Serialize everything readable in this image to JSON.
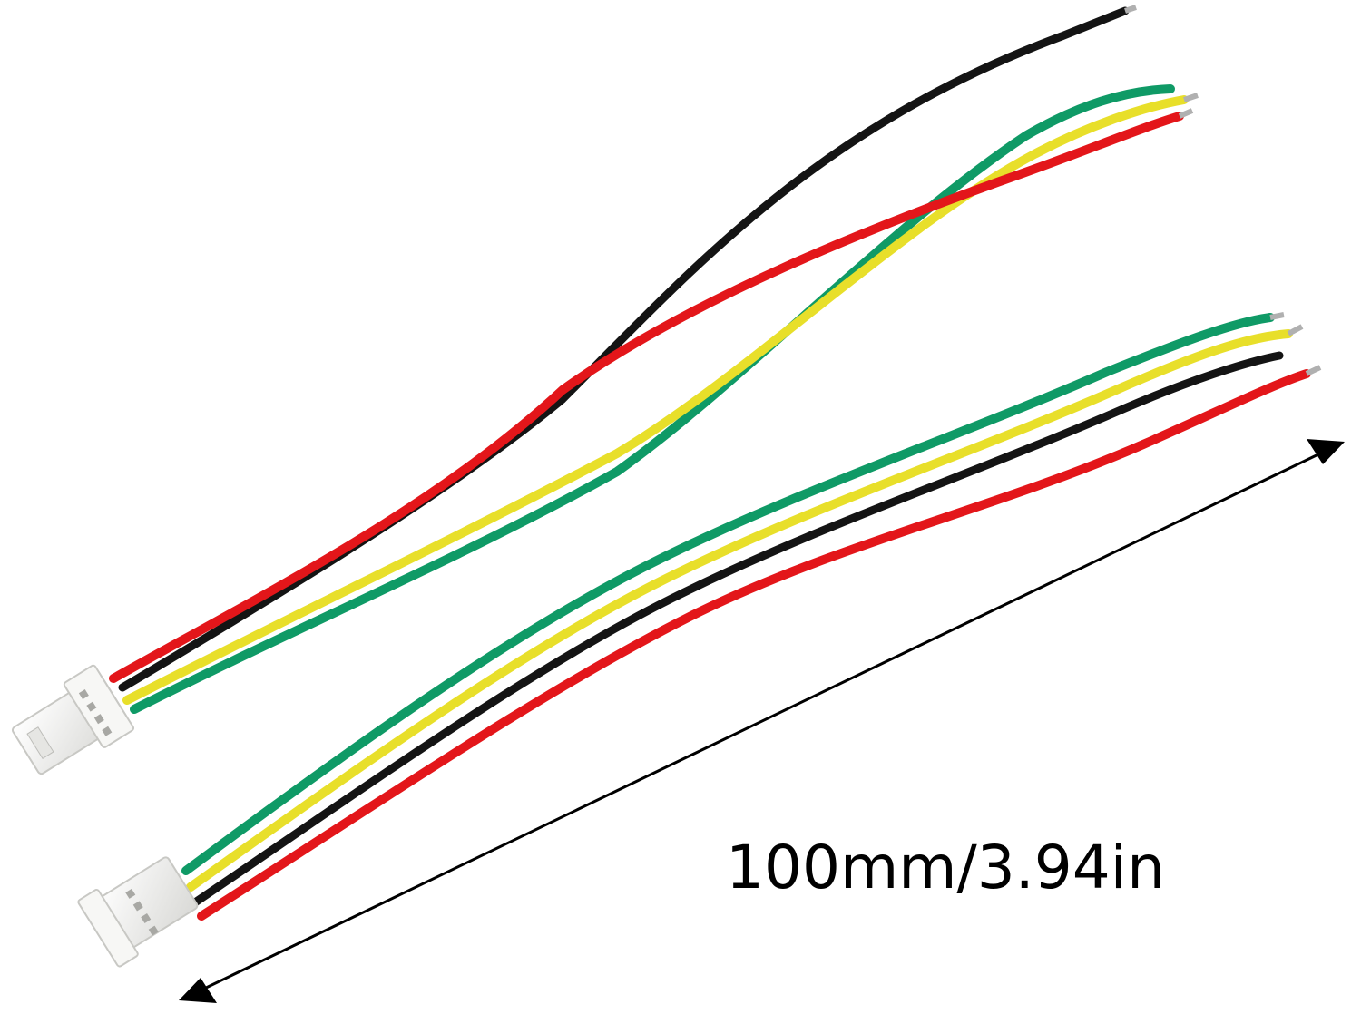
{
  "product": {
    "dimension_label": "100mm/3.94in"
  },
  "colors": {
    "background": "#ffffff",
    "wire_black": "#141414",
    "wire_red": "#e3161a",
    "wire_yellow": "#e8df2a",
    "wire_green": "#0f9a66",
    "connector_white": "#f1f1ef",
    "arrow": "#000000"
  }
}
